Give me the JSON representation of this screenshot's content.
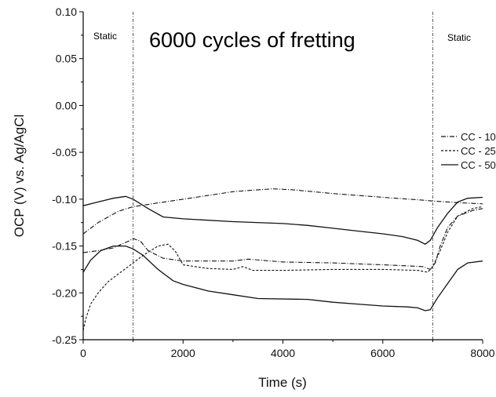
{
  "chart_data": {
    "type": "line",
    "title": "",
    "xlabel": "Time (s)",
    "ylabel": "OCP (V) vs. Ag/AgCl",
    "xlim": [
      0,
      8000
    ],
    "ylim": [
      -0.25,
      0.1
    ],
    "x_ticks": [
      0,
      2000,
      4000,
      6000,
      8000
    ],
    "x_tick_labels": [
      "0",
      "2000",
      "4000",
      "6000",
      "8000"
    ],
    "y_ticks": [
      0.1,
      0.05,
      0.0,
      -0.05,
      -0.1,
      -0.15,
      -0.2,
      -0.25
    ],
    "y_tick_labels": [
      "0.10",
      "0.05",
      "0.00",
      "-0.05",
      "-0.10",
      "-0.15",
      "-0.20",
      "-0.25"
    ],
    "grid": false,
    "legend_position": "right",
    "annotations": {
      "fretting_label": "6000 cycles of fretting",
      "static_left": "Static",
      "static_right": "Static",
      "vlines_x": [
        1000,
        7000
      ]
    },
    "series": [
      {
        "name": "CC - 10",
        "style": "dash-dot",
        "curves": [
          [
            [
              0,
              -0.137
            ],
            [
              300,
              -0.125
            ],
            [
              700,
              -0.113
            ],
            [
              1000,
              -0.108
            ],
            [
              1500,
              -0.104
            ],
            [
              2000,
              -0.1
            ],
            [
              2500,
              -0.096
            ],
            [
              3000,
              -0.092
            ],
            [
              3500,
              -0.09
            ],
            [
              3800,
              -0.089
            ],
            [
              4200,
              -0.09
            ],
            [
              5000,
              -0.094
            ],
            [
              6000,
              -0.098
            ],
            [
              6800,
              -0.101
            ],
            [
              7000,
              -0.102
            ],
            [
              7300,
              -0.103
            ],
            [
              7600,
              -0.104
            ],
            [
              8000,
              -0.105
            ]
          ],
          [
            [
              0,
              -0.157
            ],
            [
              300,
              -0.155
            ],
            [
              600,
              -0.152
            ],
            [
              900,
              -0.145
            ],
            [
              1000,
              -0.142
            ],
            [
              1150,
              -0.145
            ],
            [
              1300,
              -0.155
            ],
            [
              1600,
              -0.163
            ],
            [
              2000,
              -0.166
            ],
            [
              3000,
              -0.166
            ],
            [
              3300,
              -0.164
            ],
            [
              4000,
              -0.167
            ],
            [
              5000,
              -0.168
            ],
            [
              6000,
              -0.17
            ],
            [
              6800,
              -0.172
            ],
            [
              6950,
              -0.175
            ],
            [
              7050,
              -0.168
            ],
            [
              7150,
              -0.15
            ],
            [
              7300,
              -0.13
            ],
            [
              7500,
              -0.118
            ],
            [
              7800,
              -0.112
            ],
            [
              8000,
              -0.11
            ]
          ]
        ]
      },
      {
        "name": "CC - 25",
        "style": "dashed",
        "curves": [
          [
            [
              0,
              -0.24
            ],
            [
              50,
              -0.228
            ],
            [
              150,
              -0.212
            ],
            [
              300,
              -0.2
            ],
            [
              500,
              -0.188
            ],
            [
              700,
              -0.18
            ],
            [
              900,
              -0.172
            ],
            [
              1000,
              -0.168
            ],
            [
              1200,
              -0.16
            ],
            [
              1500,
              -0.15
            ],
            [
              1700,
              -0.148
            ],
            [
              1850,
              -0.156
            ],
            [
              2000,
              -0.17
            ],
            [
              2500,
              -0.174
            ],
            [
              3000,
              -0.175
            ],
            [
              3200,
              -0.172
            ],
            [
              3400,
              -0.176
            ],
            [
              4000,
              -0.176
            ],
            [
              5000,
              -0.175
            ],
            [
              6000,
              -0.175
            ],
            [
              6700,
              -0.176
            ],
            [
              6900,
              -0.178
            ],
            [
              7000,
              -0.172
            ],
            [
              7150,
              -0.155
            ],
            [
              7300,
              -0.135
            ],
            [
              7500,
              -0.118
            ],
            [
              7800,
              -0.11
            ],
            [
              8000,
              -0.108
            ]
          ]
        ]
      },
      {
        "name": "CC - 50",
        "style": "solid",
        "curves": [
          [
            [
              0,
              -0.107
            ],
            [
              300,
              -0.103
            ],
            [
              600,
              -0.099
            ],
            [
              850,
              -0.097
            ],
            [
              1000,
              -0.1
            ],
            [
              1300,
              -0.11
            ],
            [
              1600,
              -0.119
            ],
            [
              2000,
              -0.121
            ],
            [
              3000,
              -0.124
            ],
            [
              4000,
              -0.126
            ],
            [
              4500,
              -0.128
            ],
            [
              5000,
              -0.131
            ],
            [
              5500,
              -0.134
            ],
            [
              6000,
              -0.137
            ],
            [
              6400,
              -0.14
            ],
            [
              6700,
              -0.144
            ],
            [
              6850,
              -0.148
            ],
            [
              6950,
              -0.144
            ],
            [
              7100,
              -0.13
            ],
            [
              7300,
              -0.115
            ],
            [
              7500,
              -0.103
            ],
            [
              7700,
              -0.099
            ],
            [
              8000,
              -0.098
            ]
          ],
          [
            [
              0,
              -0.178
            ],
            [
              150,
              -0.165
            ],
            [
              350,
              -0.155
            ],
            [
              600,
              -0.15
            ],
            [
              850,
              -0.15
            ],
            [
              1000,
              -0.153
            ],
            [
              1200,
              -0.16
            ],
            [
              1500,
              -0.175
            ],
            [
              1800,
              -0.187
            ],
            [
              2000,
              -0.191
            ],
            [
              2500,
              -0.198
            ],
            [
              3000,
              -0.202
            ],
            [
              3500,
              -0.206
            ],
            [
              4500,
              -0.207
            ],
            [
              5000,
              -0.21
            ],
            [
              5500,
              -0.212
            ],
            [
              6000,
              -0.214
            ],
            [
              6500,
              -0.215
            ],
            [
              6700,
              -0.216
            ],
            [
              6850,
              -0.219
            ],
            [
              6950,
              -0.218
            ],
            [
              7100,
              -0.205
            ],
            [
              7300,
              -0.19
            ],
            [
              7500,
              -0.175
            ],
            [
              7700,
              -0.168
            ],
            [
              8000,
              -0.166
            ]
          ]
        ]
      }
    ]
  }
}
